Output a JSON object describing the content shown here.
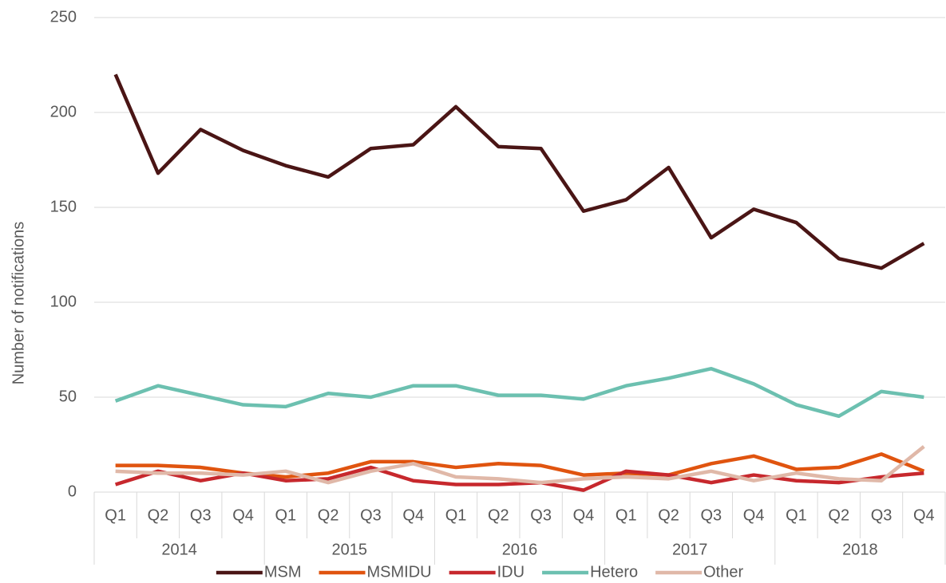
{
  "chart_data": {
    "type": "line",
    "y_label": "Number of notifications",
    "categories": [
      "Q1",
      "Q2",
      "Q3",
      "Q4",
      "Q1",
      "Q2",
      "Q3",
      "Q4",
      "Q1",
      "Q2",
      "Q3",
      "Q4",
      "Q1",
      "Q2",
      "Q3",
      "Q4",
      "Q1",
      "Q2",
      "Q3",
      "Q4"
    ],
    "category_groups": [
      "2014",
      "2015",
      "2016",
      "2017",
      "2018"
    ],
    "ylim": [
      0,
      250
    ],
    "yticks": [
      0,
      50,
      100,
      150,
      200,
      250
    ],
    "grid": true,
    "legend": "bottom",
    "series": [
      {
        "name": "MSM",
        "color": "#4a1515",
        "values": [
          220,
          168,
          191,
          180,
          172,
          166,
          181,
          183,
          203,
          182,
          181,
          148,
          154,
          171,
          134,
          149,
          142,
          123,
          118,
          131
        ]
      },
      {
        "name": "MSMIDU",
        "color": "#e0540f",
        "values": [
          14,
          14,
          13,
          10,
          8,
          10,
          16,
          16,
          13,
          15,
          14,
          9,
          10,
          9,
          15,
          19,
          12,
          13,
          20,
          11
        ]
      },
      {
        "name": "IDU",
        "color": "#c7282d",
        "values": [
          4,
          11,
          6,
          10,
          6,
          7,
          13,
          6,
          4,
          4,
          5,
          1,
          11,
          9,
          5,
          9,
          6,
          5,
          8,
          10
        ]
      },
      {
        "name": "Hetero",
        "color": "#6cc0b0",
        "values": [
          48,
          56,
          51,
          46,
          45,
          52,
          50,
          56,
          56,
          51,
          51,
          49,
          56,
          60,
          65,
          57,
          46,
          40,
          53,
          50
        ]
      },
      {
        "name": "Other",
        "color": "#e0b8a8",
        "values": [
          11,
          10,
          10,
          9,
          11,
          5,
          11,
          15,
          8,
          7,
          5,
          7,
          8,
          7,
          11,
          6,
          10,
          7,
          6,
          24
        ]
      }
    ]
  }
}
